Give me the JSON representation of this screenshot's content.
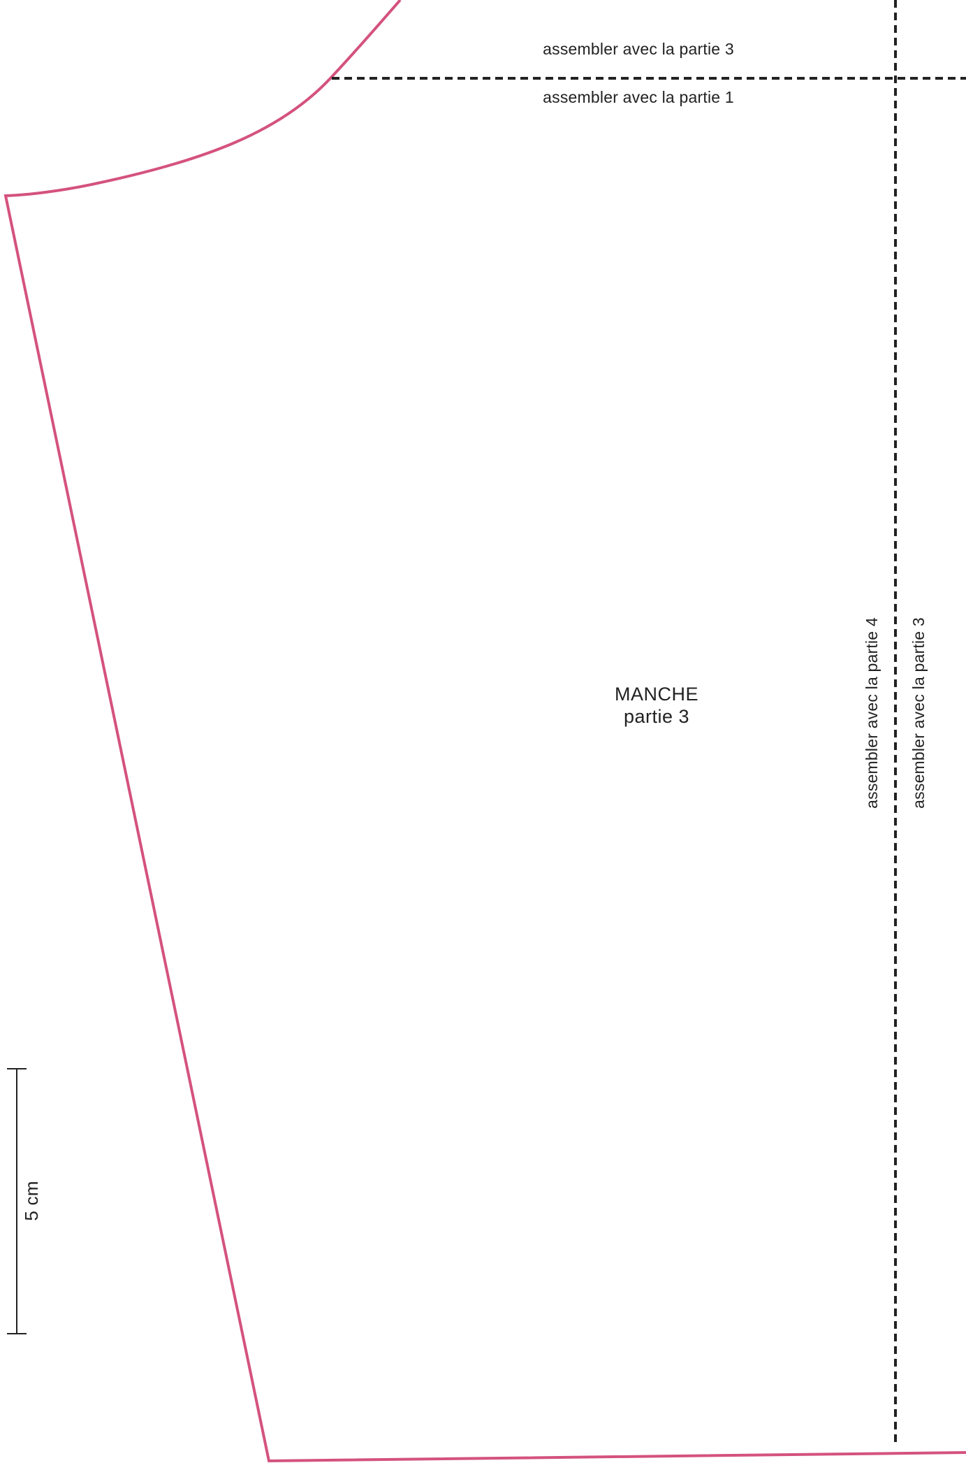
{
  "colors": {
    "outline": "#d4527f",
    "ink": "#222222"
  },
  "pattern_piece": {
    "title": "MANCHE",
    "subtitle": "partie 3"
  },
  "assembly_labels": {
    "top_above": "assembler avec la partie 3",
    "top_below": "assembler avec la partie 1",
    "right_left": "assembler avec la partie 4",
    "right_right": "assembler avec la partie 3"
  },
  "scale_bar": {
    "label": "5 cm"
  }
}
